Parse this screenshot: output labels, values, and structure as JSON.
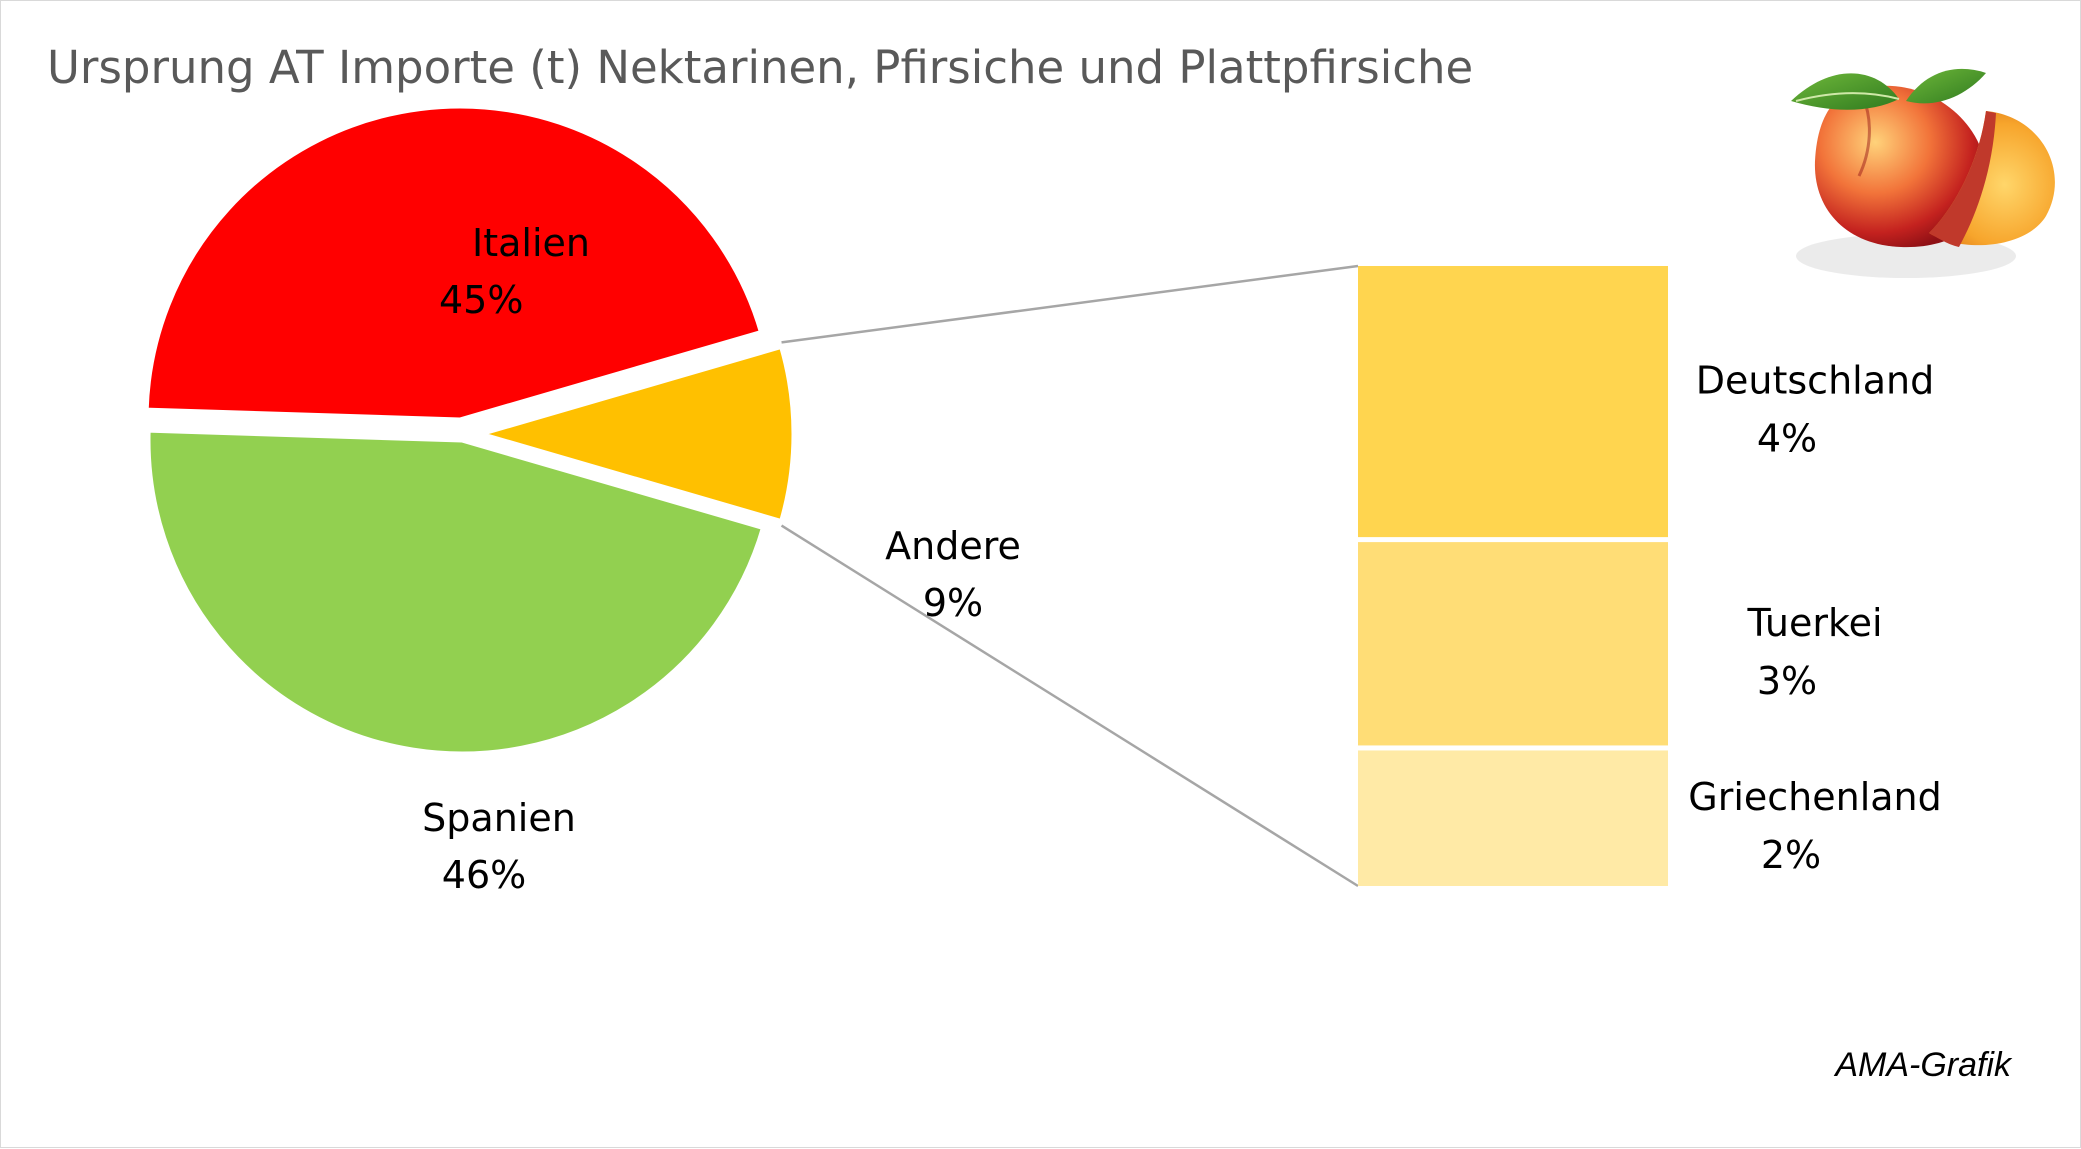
{
  "chart_data": {
    "type": "pie",
    "subtype": "bar-of-pie",
    "title": "Ursprung AT Importe (t) Nektarinen, Pfirsiche und Plattpfirsiche",
    "slices": [
      {
        "label": "Italien",
        "value": 45,
        "value_label": "45%",
        "color": "#ff0000"
      },
      {
        "label": "Andere",
        "value": 9,
        "value_label": "9%",
        "color": "#ffc000"
      },
      {
        "label": "Spanien",
        "value": 46,
        "value_label": "46%",
        "color": "#92d050"
      }
    ],
    "breakdown": {
      "of": "Andere",
      "items": [
        {
          "label": "Deutschland",
          "value": 4,
          "value_label": "4%",
          "color": "#ffd54f"
        },
        {
          "label": "Tuerkei",
          "value": 3,
          "value_label": "3%",
          "color": "#ffdd76"
        },
        {
          "label": "Griechenland",
          "value": 2,
          "value_label": "2%",
          "color": "#ffeaa6"
        }
      ]
    },
    "credit": "AMA-Grafik"
  },
  "colors": {
    "title": "#595959",
    "connector": "#a6a6a6",
    "border": "#d9d9d9"
  },
  "decoration": {
    "icon": "peach-icon"
  }
}
